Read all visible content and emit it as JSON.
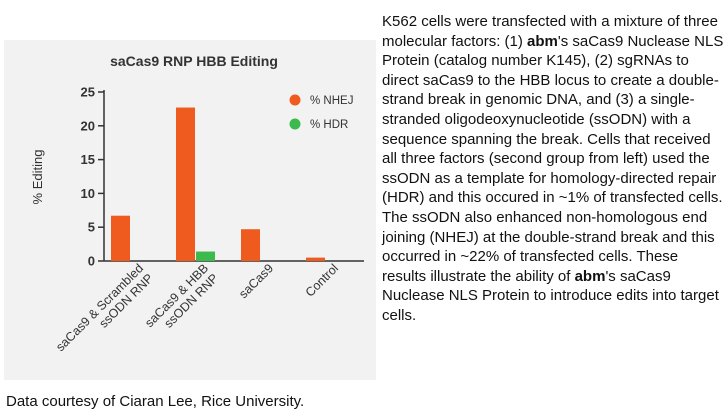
{
  "chart_data": {
    "type": "bar",
    "title": "saCas9 RNP HBB Editing",
    "ylabel": "% Editing",
    "xlabel": "",
    "ylim": [
      0,
      25
    ],
    "yticks": [
      0,
      5,
      10,
      15,
      20,
      25
    ],
    "categories": [
      [
        "saCas9 & Scrambled",
        "ssODN RNP"
      ],
      [
        "saCas9 & HBB",
        "ssODN RNP"
      ],
      [
        "saCas9"
      ],
      [
        "Control"
      ]
    ],
    "series": [
      {
        "name": "% NHEJ",
        "color": "#ef5a1f",
        "values": [
          6.7,
          22.7,
          4.7,
          0.5
        ]
      },
      {
        "name": "% HDR",
        "color": "#3dba4e",
        "values": [
          0,
          1.4,
          0,
          0
        ]
      }
    ],
    "legend_position": "top-right",
    "grid": false
  },
  "caption": "Data courtesy of Ciaran Lee, Rice University.",
  "description": {
    "p1": "K562 cells were transfected with a mixture of three molecular factors: (1) ",
    "brand1": "abm",
    "p2": "'s saCas9 Nuclease NLS Protein (catalog number K145), (2) sgRNAs to direct saCas9 to the HBB locus to create a double-strand break in genomic DNA, and (3) a single-stranded oligodeoxynucleotide (ssODN) with a sequence spanning the break. Cells that received all three factors (second group from left) used the ssODN as a template for homology-directed repair (HDR) and this occured in ~1% of transfected cells. The ssODN also enhanced non-homologous end joining (NHEJ) at the double-strand break and this occurred in ~22% of transfected cells. These results illustrate the ability of ",
    "brand2": "abm",
    "p3": "'s saCas9 Nuclease NLS Protein to introduce edits into target cells."
  }
}
